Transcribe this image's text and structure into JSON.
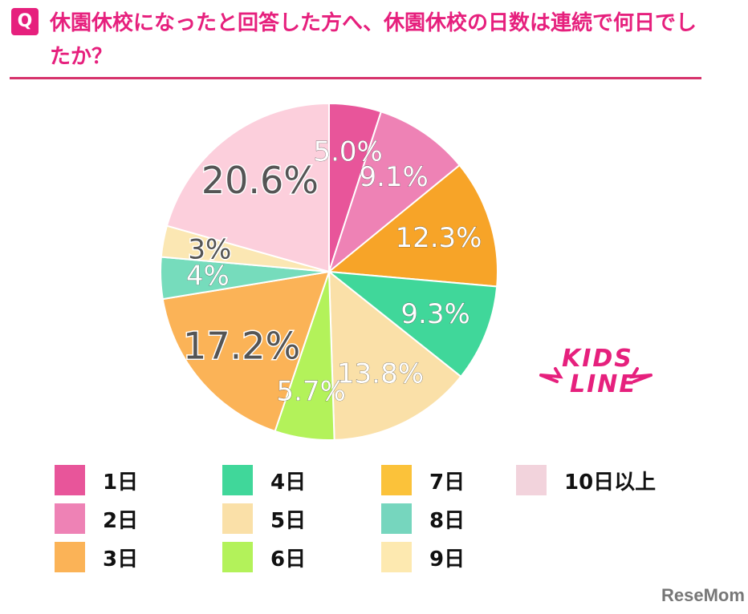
{
  "question": {
    "badge": "Q",
    "title": "休園休校になったと回答した方へ、休園休校の日数は連続で何日でしたか？"
  },
  "chart_data": {
    "type": "pie",
    "start_angle_deg": 0,
    "direction": "clockwise",
    "slices": [
      {
        "label": "1日",
        "value": 5.0,
        "display": "5.0%",
        "color": "#e8559a",
        "label_style": "light"
      },
      {
        "label": "2日",
        "value": 9.1,
        "display": "9.1%",
        "color": "#ee82b5",
        "label_style": "light"
      },
      {
        "label": "7日",
        "value": 12.3,
        "display": "12.3%",
        "color": "#f7a428",
        "label_style": "light"
      },
      {
        "label": "4日",
        "value": 9.3,
        "display": "9.3%",
        "color": "#40d79a",
        "label_style": "light"
      },
      {
        "label": "5日",
        "value": 13.8,
        "display": "13.8%",
        "color": "#fae0a8",
        "label_style": "light"
      },
      {
        "label": "6日",
        "value": 5.7,
        "display": "5.7%",
        "color": "#b3f25a",
        "label_style": "light"
      },
      {
        "label": "3日",
        "value": 17.2,
        "display": "17.2%",
        "color": "#fbb357",
        "label_style": "dark"
      },
      {
        "label": "8日",
        "value": 4,
        "display": "4%",
        "color": "#76dcbc",
        "label_style": "light"
      },
      {
        "label": "9日",
        "value": 3,
        "display": "3%",
        "color": "#fbe7b3",
        "label_style": "dark"
      },
      {
        "label": "10日以上",
        "value": 20.6,
        "display": "20.6%",
        "color": "#fccfdc",
        "label_style": "dark"
      }
    ]
  },
  "legend": [
    {
      "label": "1日",
      "color": "#e8559a"
    },
    {
      "label": "2日",
      "color": "#ee82b5"
    },
    {
      "label": "3日",
      "color": "#fbb357"
    },
    {
      "label": "4日",
      "color": "#40d79a"
    },
    {
      "label": "5日",
      "color": "#fae0a8"
    },
    {
      "label": "6日",
      "color": "#b3f25a"
    },
    {
      "label": "7日",
      "color": "#fbc23a"
    },
    {
      "label": "8日",
      "color": "#76d6be"
    },
    {
      "label": "9日",
      "color": "#fde9b0"
    },
    {
      "label": "10日以上",
      "color": "#f2d3dc"
    }
  ],
  "logo": {
    "text_line1": "KIDS",
    "text_line2": "LINE"
  },
  "watermark": "ReseMom"
}
